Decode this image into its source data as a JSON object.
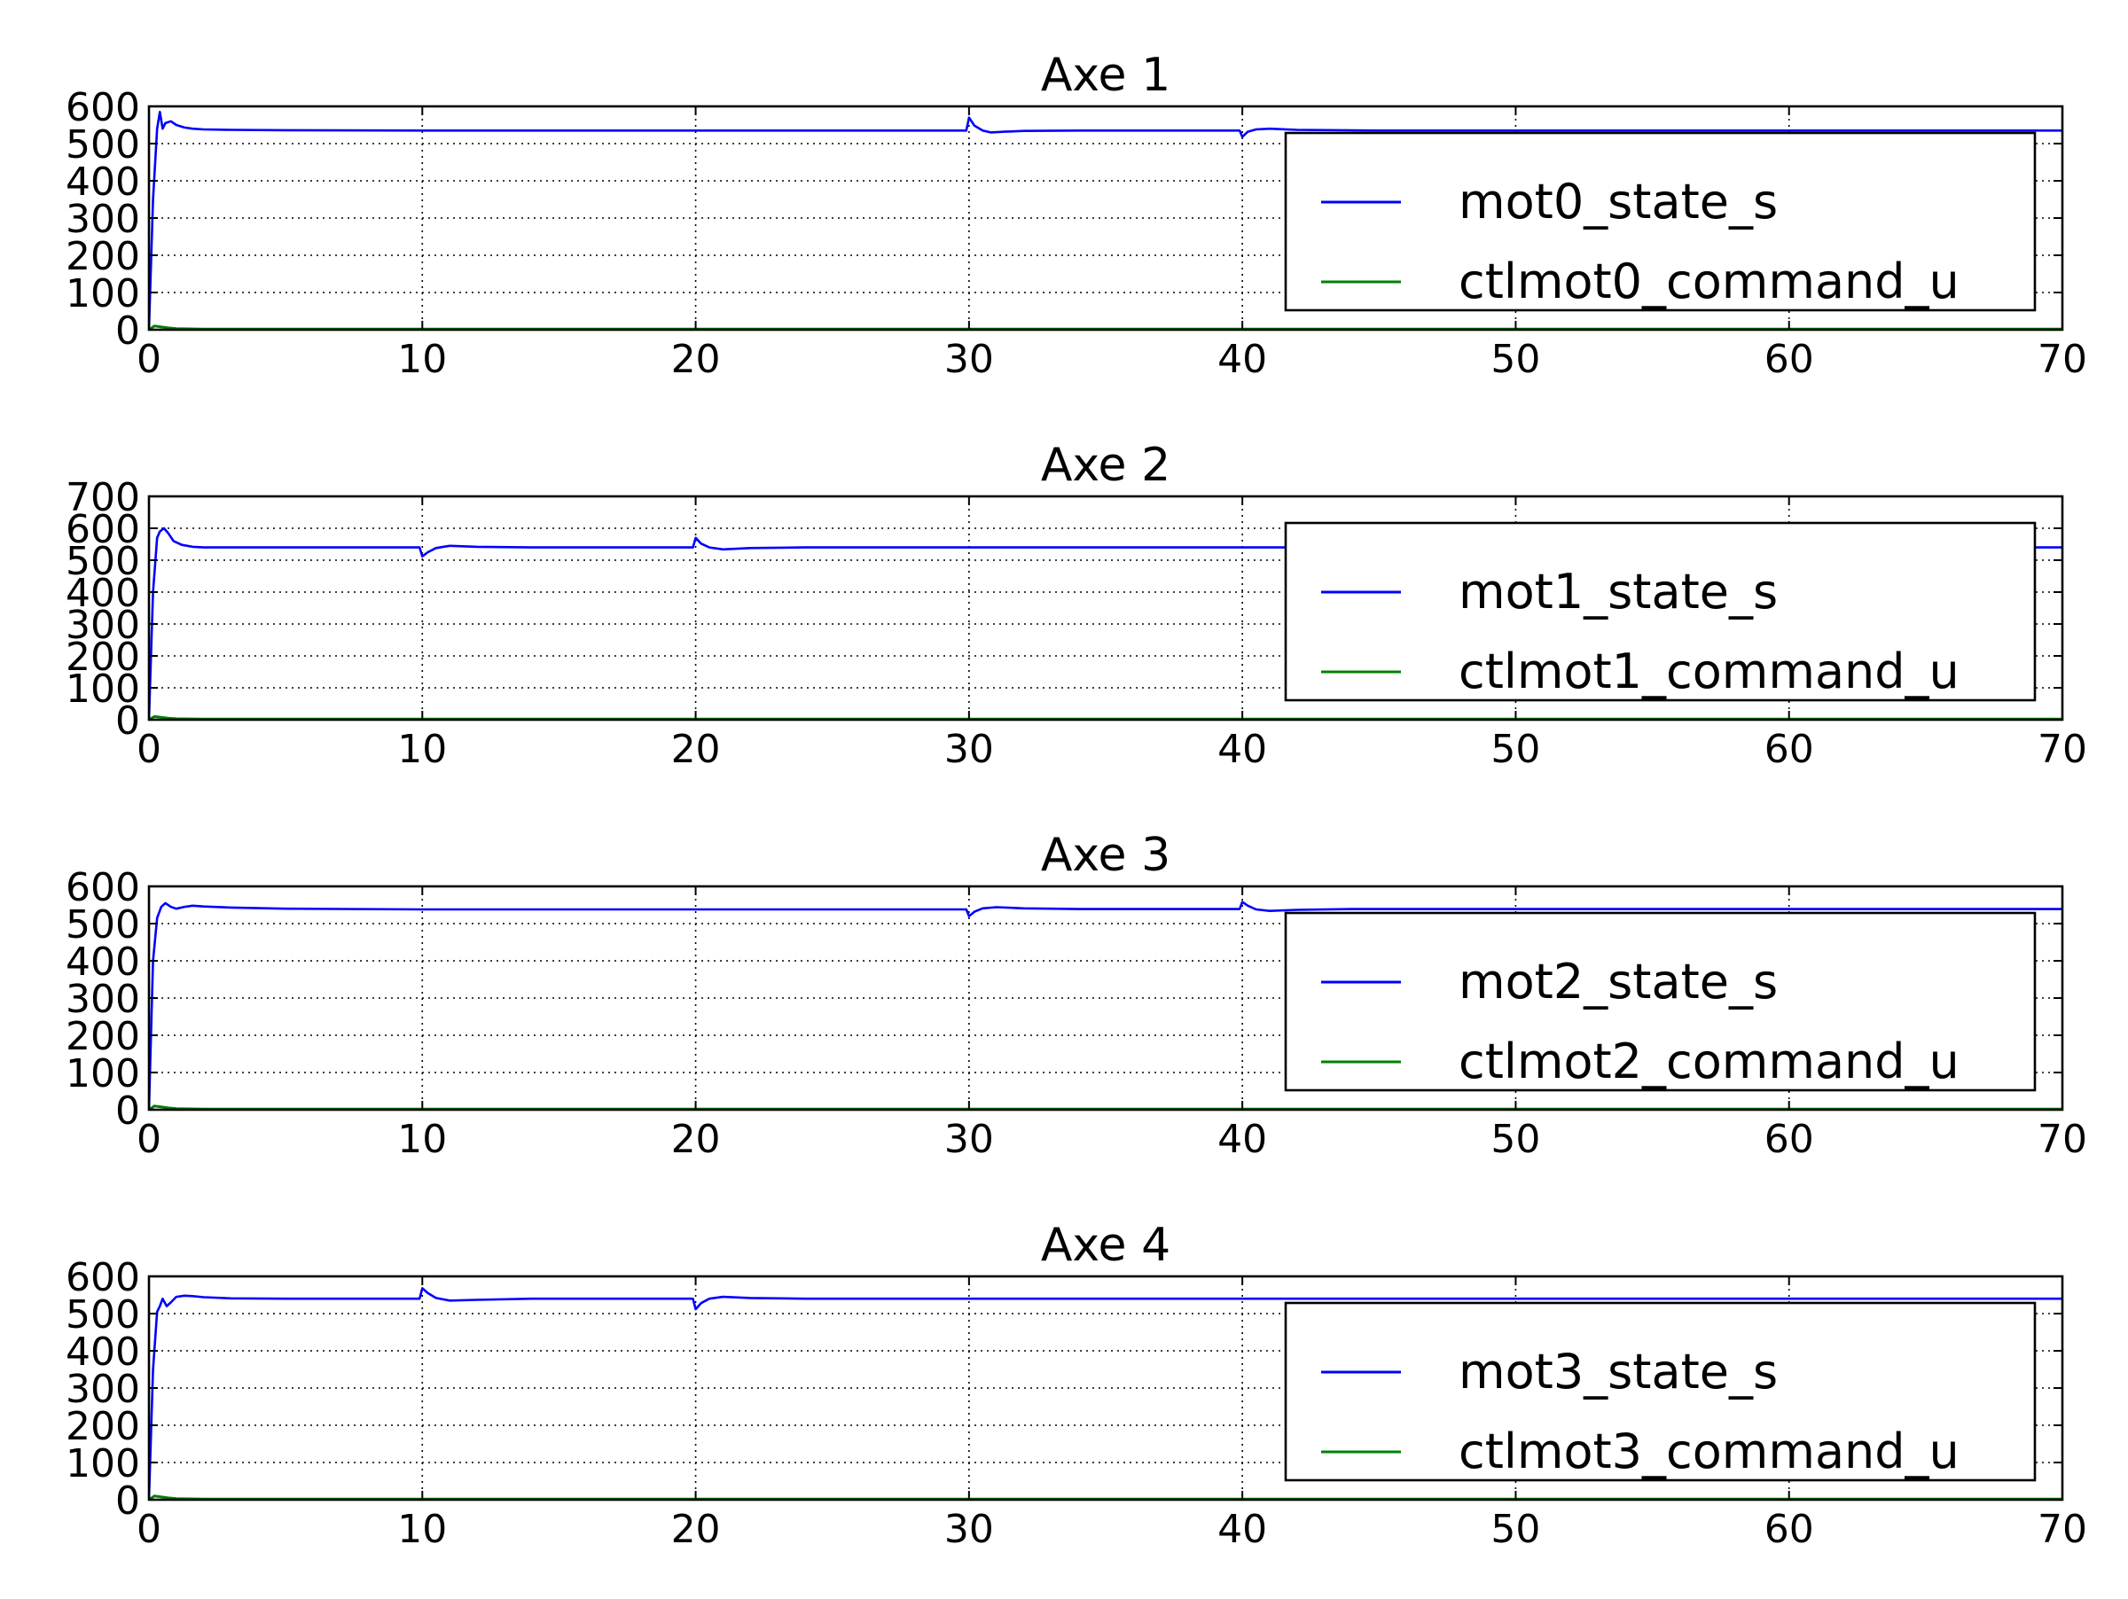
{
  "colors": {
    "state_series": "#0000ff",
    "command_series": "#008000",
    "axes": "#000000",
    "grid": "#000000",
    "background": "#ffffff"
  },
  "chart_data": [
    {
      "type": "line",
      "title": "Axe 1",
      "xlabel": "",
      "ylabel": "",
      "xlim": [
        0,
        70
      ],
      "ylim": [
        0,
        600
      ],
      "xticks": [
        0,
        10,
        20,
        30,
        40,
        50,
        60,
        70
      ],
      "yticks": [
        0,
        100,
        200,
        300,
        400,
        500,
        600
      ],
      "grid": true,
      "grid_style": "dotted",
      "legend_position": "lower-right",
      "series": [
        {
          "name": "mot0_state_s",
          "color": "#0000ff",
          "x": [
            0,
            0.15,
            0.3,
            0.4,
            0.5,
            0.6,
            0.8,
            1.0,
            1.3,
            1.6,
            2,
            3,
            5,
            10,
            20,
            29.9,
            30.0,
            30.2,
            30.5,
            30.8,
            31.3,
            32,
            34,
            36,
            38,
            39.9,
            40.0,
            40.2,
            40.5,
            41,
            42,
            45,
            50,
            60,
            70
          ],
          "y": [
            0,
            350,
            540,
            585,
            540,
            555,
            560,
            550,
            543,
            540,
            538,
            537,
            536,
            535,
            535,
            535,
            570,
            548,
            535,
            530,
            532,
            534,
            535,
            535,
            535,
            535,
            518,
            532,
            538,
            540,
            537,
            535,
            535,
            535,
            535
          ]
        },
        {
          "name": "ctlmot0_command_u",
          "color": "#008000",
          "x": [
            0,
            0.2,
            0.4,
            0.7,
            1.0,
            2,
            70
          ],
          "y": [
            0,
            10,
            8,
            5,
            3,
            2,
            2
          ]
        }
      ]
    },
    {
      "type": "line",
      "title": "Axe 2",
      "xlabel": "",
      "ylabel": "",
      "xlim": [
        0,
        70
      ],
      "ylim": [
        0,
        700
      ],
      "xticks": [
        0,
        10,
        20,
        30,
        40,
        50,
        60,
        70
      ],
      "yticks": [
        0,
        100,
        200,
        300,
        400,
        500,
        600,
        700
      ],
      "grid": true,
      "grid_style": "dotted",
      "legend_position": "lower-right",
      "series": [
        {
          "name": "mot1_state_s",
          "color": "#0000ff",
          "x": [
            0,
            0.15,
            0.3,
            0.4,
            0.55,
            0.7,
            0.9,
            1.2,
            1.6,
            2,
            3,
            5,
            9.9,
            10.0,
            10.2,
            10.5,
            11,
            12,
            14,
            19.9,
            20.0,
            20.2,
            20.5,
            21,
            22,
            24,
            30,
            40,
            50,
            60,
            70
          ],
          "y": [
            0,
            400,
            570,
            590,
            600,
            585,
            560,
            548,
            542,
            540,
            540,
            540,
            540,
            512,
            525,
            538,
            545,
            542,
            540,
            540,
            570,
            552,
            540,
            534,
            538,
            540,
            540,
            540,
            540,
            540,
            540
          ]
        },
        {
          "name": "ctlmot1_command_u",
          "color": "#008000",
          "x": [
            0,
            0.2,
            0.4,
            0.7,
            1.0,
            2,
            70
          ],
          "y": [
            0,
            10,
            8,
            5,
            3,
            2,
            2
          ]
        }
      ]
    },
    {
      "type": "line",
      "title": "Axe 3",
      "xlabel": "",
      "ylabel": "",
      "xlim": [
        0,
        70
      ],
      "ylim": [
        0,
        600
      ],
      "xticks": [
        0,
        10,
        20,
        30,
        40,
        50,
        60,
        70
      ],
      "yticks": [
        0,
        100,
        200,
        300,
        400,
        500,
        600
      ],
      "grid": true,
      "grid_style": "dotted",
      "legend_position": "lower-right",
      "series": [
        {
          "name": "mot2_state_s",
          "color": "#0000ff",
          "x": [
            0,
            0.15,
            0.3,
            0.45,
            0.6,
            0.8,
            1.0,
            1.3,
            1.6,
            2,
            3,
            5,
            10,
            20,
            29.9,
            30.0,
            30.2,
            30.5,
            31,
            32,
            34,
            39.9,
            40.0,
            40.2,
            40.5,
            41,
            42,
            44,
            50,
            60,
            70
          ],
          "y": [
            0,
            400,
            515,
            545,
            555,
            545,
            540,
            545,
            548,
            546,
            543,
            540,
            538,
            538,
            538,
            520,
            532,
            541,
            544,
            541,
            539,
            539,
            558,
            548,
            538,
            534,
            537,
            539,
            539,
            539,
            539
          ]
        },
        {
          "name": "ctlmot2_command_u",
          "color": "#008000",
          "x": [
            0,
            0.2,
            0.4,
            0.7,
            1.0,
            2,
            70
          ],
          "y": [
            0,
            10,
            8,
            5,
            3,
            2,
            2
          ]
        }
      ]
    },
    {
      "type": "line",
      "title": "Axe 4",
      "xlabel": "",
      "ylabel": "",
      "xlim": [
        0,
        70
      ],
      "ylim": [
        0,
        600
      ],
      "xticks": [
        0,
        10,
        20,
        30,
        40,
        50,
        60,
        70
      ],
      "yticks": [
        0,
        100,
        200,
        300,
        400,
        500,
        600
      ],
      "grid": true,
      "grid_style": "dotted",
      "legend_position": "lower-right",
      "series": [
        {
          "name": "mot3_state_s",
          "color": "#0000ff",
          "x": [
            0,
            0.15,
            0.3,
            0.4,
            0.5,
            0.65,
            0.8,
            1.0,
            1.3,
            1.6,
            2,
            3,
            5,
            9.9,
            10.0,
            10.2,
            10.5,
            11,
            12,
            14,
            19.9,
            20.0,
            20.2,
            20.5,
            21,
            22,
            24,
            30,
            40,
            50,
            60,
            70
          ],
          "y": [
            0,
            350,
            505,
            520,
            540,
            520,
            530,
            545,
            548,
            547,
            544,
            541,
            540,
            540,
            568,
            555,
            542,
            535,
            537,
            540,
            540,
            512,
            528,
            540,
            545,
            542,
            540,
            540,
            540,
            540,
            540,
            540
          ]
        },
        {
          "name": "ctlmot3_command_u",
          "color": "#008000",
          "x": [
            0,
            0.2,
            0.4,
            0.7,
            1.0,
            2,
            70
          ],
          "y": [
            0,
            10,
            8,
            5,
            3,
            2,
            2
          ]
        }
      ]
    }
  ]
}
